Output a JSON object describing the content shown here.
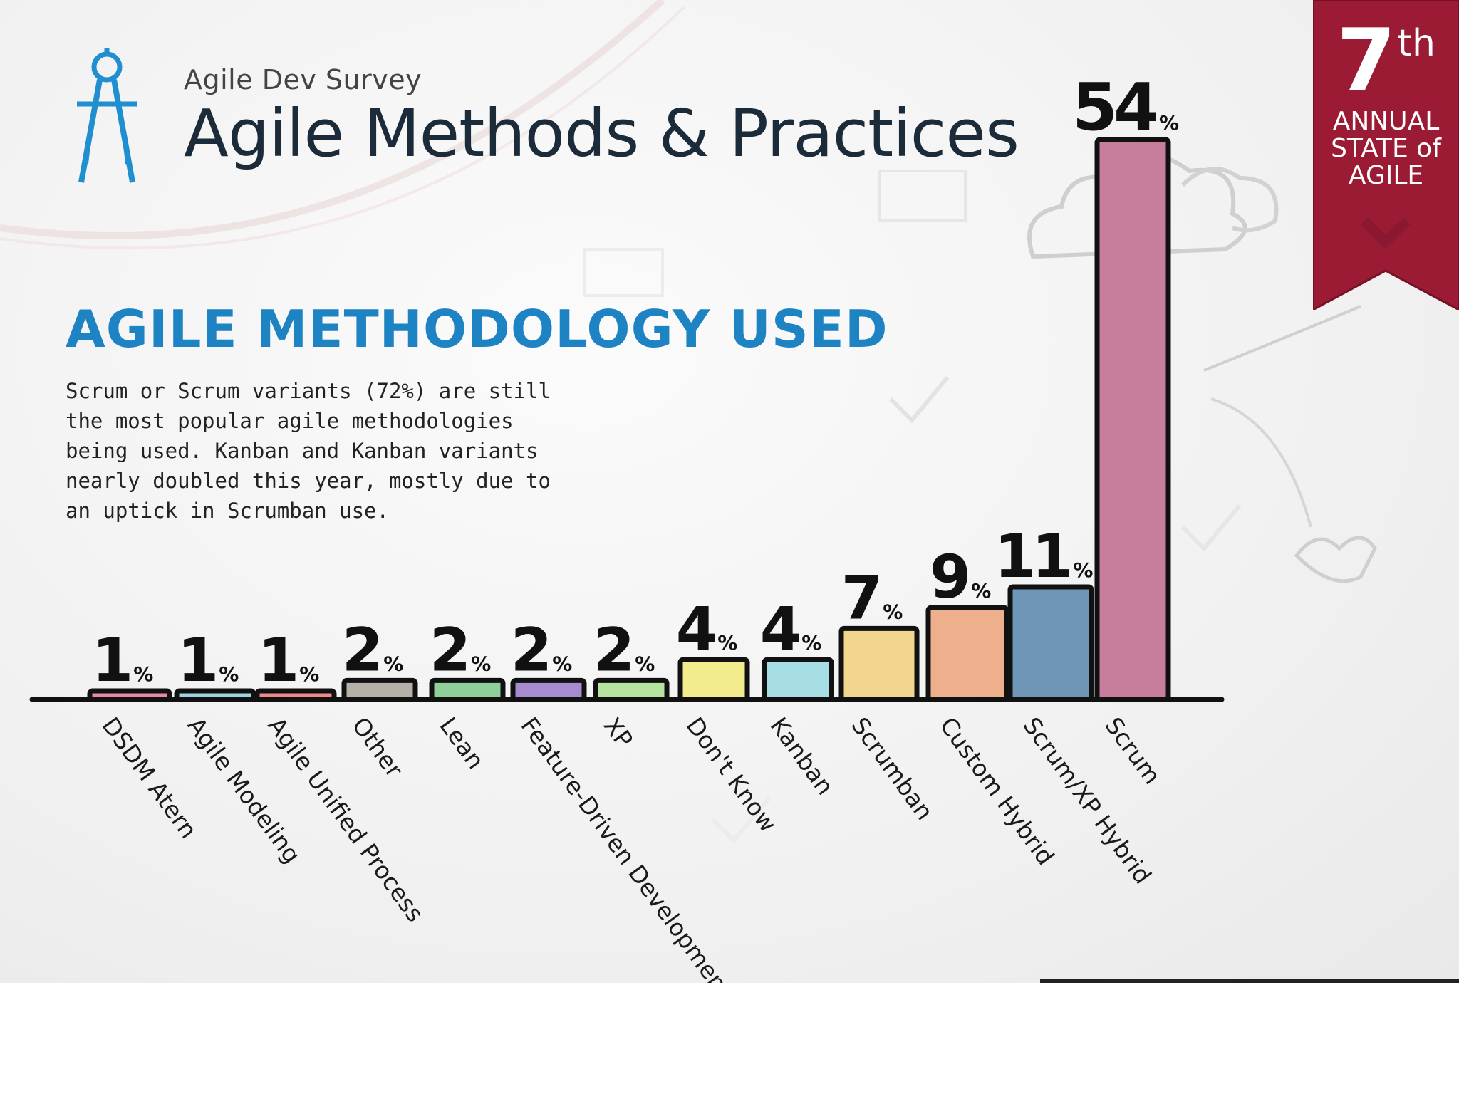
{
  "header": {
    "subtitle": "Agile Dev Survey",
    "title": "Agile Methods & Practices"
  },
  "ribbon": {
    "number": "7",
    "suffix": "th",
    "caption": "ANNUAL\nSTATE of\nAGILE",
    "color": "#9b1b35"
  },
  "section": {
    "heading": "AGILE METHODOLOGY USED",
    "description": "Scrum or Scrum variants (72%) are still the most popular agile methodologies being used. Kanban and Kanban variants nearly doubled this year, mostly due to an uptick in Scrumban use."
  },
  "chart_data": {
    "type": "bar",
    "categories": [
      "DSDM Atern",
      "Agile Modeling",
      "Agile Unified Process",
      "Other",
      "Lean",
      "Feature-Driven Development",
      "XP",
      "Don't Know",
      "Kanban",
      "Scrumban",
      "Custom Hybrid",
      "Scrum/XP Hybrid",
      "Scrum"
    ],
    "values": [
      1,
      1,
      1,
      2,
      2,
      2,
      2,
      4,
      4,
      7,
      9,
      11,
      54
    ],
    "value_labels": [
      "1",
      "1",
      "1",
      "2",
      "2",
      "2",
      "2",
      "4",
      "4",
      "7",
      "9",
      "11",
      "54"
    ],
    "unit": "%",
    "colors": [
      "#e88aa6",
      "#9ed3df",
      "#ef8a8a",
      "#b5b0a8",
      "#8fcf9a",
      "#a68bd0",
      "#b6e3a0",
      "#f3ec8f",
      "#a7dde4",
      "#f2d58f",
      "#eeb08c",
      "#6f96b6",
      "#c97d9c"
    ],
    "title": "AGILE METHODOLOGY USED",
    "xlabel": "",
    "ylabel": "",
    "ylim": [
      0,
      54
    ],
    "grid": false,
    "legend": "none"
  }
}
